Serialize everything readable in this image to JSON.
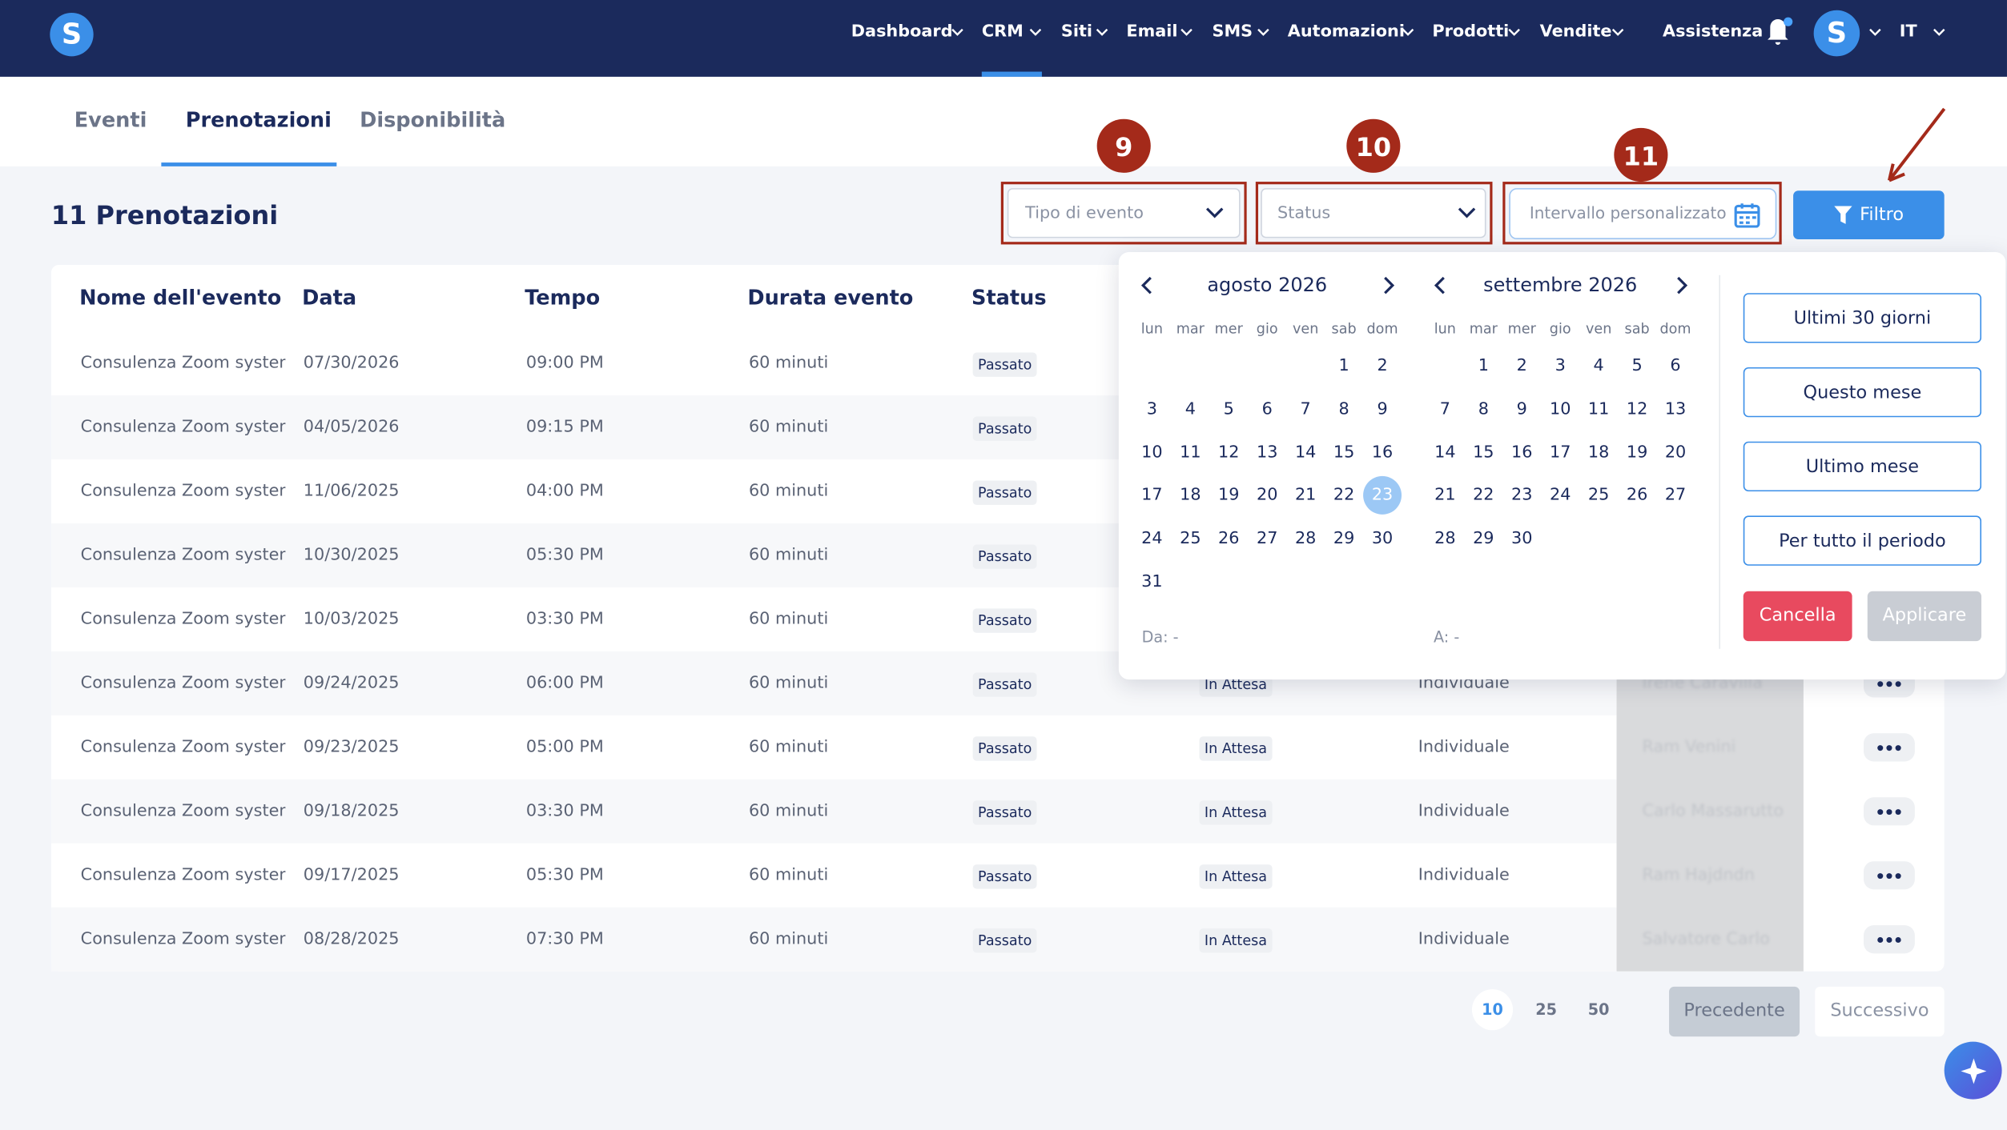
{
  "nav": {
    "logo": "S",
    "items": [
      "Dashboard",
      "CRM",
      "Siti",
      "Email",
      "SMS",
      "Automazioni",
      "Prodotti",
      "Vendite"
    ],
    "help": "Assistenza",
    "avatar": "S",
    "language": "IT"
  },
  "tabs": [
    "Eventi",
    "Prenotazioni",
    "Disponibilità"
  ],
  "heading": "11 Prenotazioni",
  "filters": {
    "event_type": "Tipo di evento",
    "status": "Status",
    "date_range": "Intervallo personalizzato",
    "button": "Filtro"
  },
  "annotations": [
    "9",
    "10",
    "11"
  ],
  "table": {
    "headers": [
      "Nome dell'evento",
      "Data",
      "Tempo",
      "Durata evento",
      "Status"
    ],
    "rows": [
      [
        "Consulenza Zoom systeme",
        "07/30/2026",
        "09:00 PM",
        "60 minuti",
        "Passato"
      ],
      [
        "Consulenza Zoom systeme",
        "04/05/2026",
        "09:15 PM",
        "60 minuti",
        "Passato"
      ],
      [
        "Consulenza Zoom systeme",
        "11/06/2025",
        "04:00 PM",
        "60 minuti",
        "Passato"
      ],
      [
        "Consulenza Zoom systeme",
        "10/30/2025",
        "05:30 PM",
        "60 minuti",
        "Passato"
      ],
      [
        "Consulenza Zoom systeme",
        "10/03/2025",
        "03:30 PM",
        "60 minuti",
        "Passato"
      ],
      [
        "Consulenza Zoom systeme",
        "09/24/2025",
        "06:00 PM",
        "60 minuti",
        "Passato",
        "In Attesa",
        "Individuale",
        "Irene Caravilla"
      ],
      [
        "Consulenza Zoom systeme",
        "09/23/2025",
        "05:00 PM",
        "60 minuti",
        "Passato",
        "In Attesa",
        "Individuale",
        "Ram Venini"
      ],
      [
        "Consulenza Zoom systeme",
        "09/18/2025",
        "03:30 PM",
        "60 minuti",
        "Passato",
        "In Attesa",
        "Individuale",
        "Carlo Massarutto"
      ],
      [
        "Consulenza Zoom systeme",
        "09/17/2025",
        "05:30 PM",
        "60 minuti",
        "Passato",
        "In Attesa",
        "Individuale",
        "Ram Hajdndn"
      ],
      [
        "Consulenza Zoom systeme",
        "08/28/2025",
        "07:30 PM",
        "60 minuti",
        "Passato",
        "In Attesa",
        "Individuale",
        "Salvatore Carlo"
      ]
    ]
  },
  "calendar": {
    "weekdays": [
      "lun",
      "mar",
      "mer",
      "gio",
      "ven",
      "sab",
      "dom"
    ],
    "months": [
      {
        "title": "agosto 2026",
        "selected": 23,
        "weeks": [
          [
            null,
            null,
            null,
            null,
            null,
            1,
            2
          ],
          [
            3,
            4,
            5,
            6,
            7,
            8,
            9
          ],
          [
            10,
            11,
            12,
            13,
            14,
            15,
            16
          ],
          [
            17,
            18,
            19,
            20,
            21,
            22,
            23
          ],
          [
            24,
            25,
            26,
            27,
            28,
            29,
            30
          ],
          [
            31,
            null,
            null,
            null,
            null,
            null,
            null
          ]
        ]
      },
      {
        "title": "settembre 2026",
        "weeks": [
          [
            null,
            1,
            2,
            3,
            4,
            5,
            6
          ],
          [
            7,
            8,
            9,
            10,
            11,
            12,
            13
          ],
          [
            14,
            15,
            16,
            17,
            18,
            19,
            20
          ],
          [
            21,
            22,
            23,
            24,
            25,
            26,
            27
          ],
          [
            28,
            29,
            30,
            null,
            null,
            null,
            null
          ]
        ]
      }
    ],
    "from": "Da: -",
    "to": "A: -",
    "presets": [
      "Ultimi 30 giorni",
      "Questo mese",
      "Ultimo mese",
      "Per tutto il periodo"
    ],
    "cancel": "Cancella",
    "apply": "Applicare"
  },
  "pagination": {
    "sizes": [
      "10",
      "25",
      "50"
    ],
    "previous": "Precedente",
    "next": "Successivo"
  }
}
